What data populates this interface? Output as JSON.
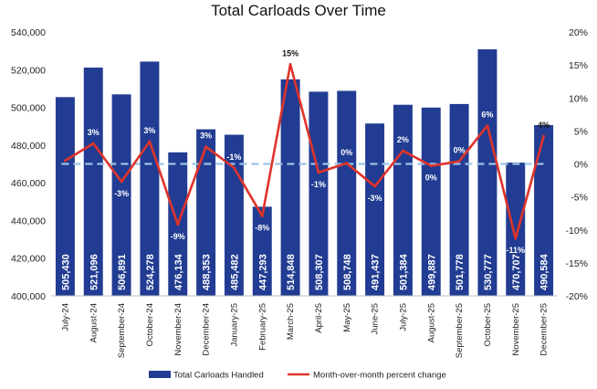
{
  "chart_data": {
    "type": "bar",
    "title": "Total Carloads Over Time",
    "categories": [
      "July-24",
      "August-24",
      "September-24",
      "October-24",
      "November-24",
      "December-24",
      "January-25",
      "February-25",
      "March-25",
      "April-25",
      "May-25",
      "June-25",
      "July-25",
      "August-25",
      "September-25",
      "October-25",
      "November-25",
      "December-25"
    ],
    "series": [
      {
        "name": "Total Carloads Handled",
        "type": "bar",
        "axis": "left",
        "color": "#213c92",
        "values": [
          505430,
          521096,
          506891,
          524278,
          476134,
          488353,
          485482,
          447293,
          514848,
          508307,
          508748,
          491437,
          501384,
          499887,
          501778,
          530777,
          470707,
          490584
        ],
        "labels": [
          "505,430",
          "521,096",
          "506,891",
          "524,278",
          "476,134",
          "488,353",
          "485,482",
          "447,293",
          "514,848",
          "508,307",
          "508,748",
          "491,437",
          "501,384",
          "499,887",
          "501,778",
          "530,777",
          "470,707",
          "490,584"
        ]
      },
      {
        "name": "Month-over-month percent change",
        "type": "line",
        "axis": "right",
        "color": "#e0332b",
        "values": [
          0.5,
          3.1,
          -2.7,
          3.4,
          -9.2,
          2.6,
          -0.6,
          -7.9,
          15.1,
          -1.3,
          0.1,
          -3.4,
          2.0,
          -0.3,
          0.4,
          5.8,
          -11.3,
          4.2
        ],
        "labels": [
          "",
          "3%",
          "-3%",
          "3%",
          "-9%",
          "3%",
          "-1%",
          "-8%",
          "15%",
          "-1%",
          "0%",
          "-3%",
          "2%",
          "0%",
          "0%",
          "6%",
          "-11%",
          "4%"
        ]
      }
    ],
    "reference_line": {
      "axis": "right",
      "value": 0,
      "color": "#9dc3e6",
      "style": "dashed"
    },
    "left_axis": {
      "ylim": [
        400000,
        540000
      ],
      "ticks": [
        "400,000",
        "420,000",
        "440,000",
        "460,000",
        "480,000",
        "500,000",
        "520,000",
        "540,000"
      ]
    },
    "right_axis": {
      "ylim": [
        -20,
        20
      ],
      "ticks": [
        "-20%",
        "-15%",
        "-10%",
        "-5%",
        "0%",
        "5%",
        "10%",
        "15%",
        "20%"
      ]
    },
    "grid": false,
    "legend_position": "bottom"
  }
}
